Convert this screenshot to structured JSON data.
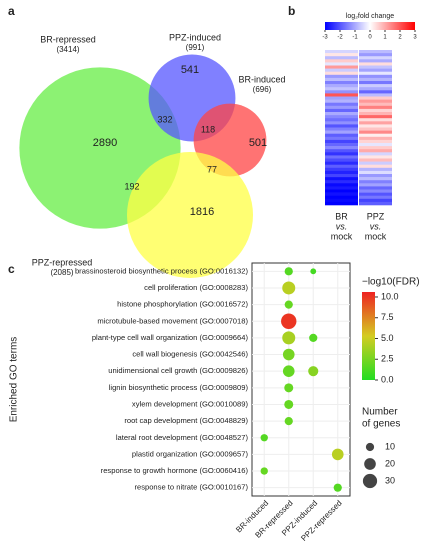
{
  "chart_data": [
    {
      "type": "venn",
      "panel": "a",
      "sets": [
        {
          "name": "BR-repressed",
          "count": 3414,
          "count_label": "(3414)",
          "color": "#66ee44"
        },
        {
          "name": "PPZ-induced",
          "count": 991,
          "count_label": "(991)",
          "color": "#5555ff"
        },
        {
          "name": "BR-induced",
          "count": 696,
          "count_label": "(696)",
          "color": "#ff4444"
        },
        {
          "name": "PPZ-repressed",
          "count": 2085,
          "count_label": "(2085)",
          "color": "#ffff44"
        }
      ],
      "regions": [
        2890,
        541,
        501,
        1816,
        332,
        118,
        192,
        77
      ]
    },
    {
      "type": "heatmap",
      "panel": "b",
      "colorbar_title": "log₂fold change",
      "zlim": [
        -3,
        3
      ],
      "zticks": [
        -3,
        -2,
        -1,
        0,
        1,
        2,
        3
      ],
      "colors": [
        "#0000ff",
        "#ffffff",
        "#ff0000"
      ],
      "columns": [
        {
          "label": [
            "BR",
            "vs.",
            "mock"
          ],
          "values": [
            -0.5,
            0.3,
            -0.8,
            0.6,
            -0.3,
            1.2,
            -0.6,
            0.4,
            -1.2,
            -0.8,
            -1.5,
            -1.0,
            -0.7,
            -1.3,
            2.0,
            -1.1,
            -0.9,
            -1.6,
            -1.2,
            -1.8,
            -1.0,
            -1.4,
            -1.7,
            -1.3,
            -2.0,
            -1.5,
            -1.1,
            -1.9,
            -1.6,
            -2.2,
            -1.8,
            -1.4,
            -2.0,
            -2.4,
            -1.7,
            -2.1,
            -2.5,
            -1.9,
            -2.3,
            -2.6,
            -2.2,
            -2.8,
            -2.5,
            -2.9,
            -2.7,
            -3.0,
            -2.8,
            -3.0,
            -2.9,
            -3.0
          ]
        },
        {
          "label": [
            "PPZ",
            "vs.",
            "mock"
          ],
          "values": [
            -0.8,
            -1.2,
            -0.5,
            -1.0,
            0.4,
            -0.7,
            -1.1,
            -0.3,
            -1.3,
            -0.9,
            -1.6,
            -0.6,
            -1.0,
            -1.8,
            -0.8,
            0.6,
            1.2,
            0.8,
            1.5,
            0.5,
            0.9,
            1.8,
            0.4,
            1.1,
            0.3,
            0.7,
            1.4,
            0.2,
            0.9,
            0.5,
            -0.3,
            0.6,
            1.0,
            -0.5,
            0.3,
            0.8,
            -0.6,
            0.4,
            -0.9,
            -0.4,
            -1.2,
            -0.8,
            -1.5,
            -1.1,
            -1.8,
            -1.4,
            -2.0,
            -1.6,
            -2.2,
            -1.9
          ]
        }
      ]
    },
    {
      "type": "dotplot",
      "panel": "c",
      "ylabel": "Enriched GO terms",
      "terms": [
        "brassinosteroid biosynthetic process (GO:0016132)",
        "cell proliferation (GO:0008283)",
        "histone phosphorylation (GO:0016572)",
        "microtubule-based movement (GO:0007018)",
        "plant-type cell wall organization (GO:0009664)",
        "cell wall biogenesis (GO:0042546)",
        "unidimensional cell growth (GO:0009826)",
        "lignin biosynthetic process (GO:0009809)",
        "xylem development (GO:0010089)",
        "root cap development (GO:0048829)",
        "lateral root development (GO:0048527)",
        "plastid organization (GO:0009657)",
        "response to growth hormone (GO:0060416)",
        "response to nitrate (GO:0010167)"
      ],
      "series": [
        {
          "name": "BR-induced",
          "fdr": [
            null,
            null,
            null,
            null,
            null,
            null,
            null,
            null,
            null,
            null,
            1.5,
            null,
            2,
            null
          ],
          "genes": [
            null,
            null,
            null,
            null,
            null,
            null,
            null,
            null,
            null,
            null,
            8,
            null,
            8,
            null
          ]
        },
        {
          "name": "BR-repressed",
          "fdr": [
            1.5,
            4.5,
            2,
            10,
            4,
            2.5,
            2,
            2,
            2,
            2,
            null,
            null,
            null,
            null
          ],
          "genes": [
            10,
            25,
            10,
            35,
            25,
            20,
            20,
            12,
            12,
            10,
            null,
            null,
            null,
            null
          ]
        },
        {
          "name": "PPZ-induced",
          "fdr": [
            1,
            null,
            null,
            null,
            1.5,
            null,
            3,
            null,
            null,
            null,
            null,
            null,
            null,
            null
          ],
          "genes": [
            5,
            null,
            null,
            null,
            10,
            null,
            15,
            null,
            null,
            null,
            null,
            null,
            null,
            null
          ]
        },
        {
          "name": "PPZ-repressed",
          "fdr": [
            null,
            null,
            null,
            null,
            null,
            null,
            null,
            null,
            null,
            null,
            null,
            4.5,
            null,
            1.5
          ],
          "genes": [
            null,
            null,
            null,
            null,
            null,
            null,
            null,
            null,
            null,
            null,
            null,
            20,
            null,
            10
          ]
        }
      ],
      "color_title": "−log10(FDR)",
      "colors": [
        "#22dd22",
        "#d4cc22",
        "#ee2222"
      ],
      "clim": [
        0,
        10.6
      ],
      "cticks": [
        {
          "value": 0,
          "label": "0.0"
        },
        {
          "value": 2.5,
          "label": "2.5"
        },
        {
          "value": 5,
          "label": "5.0"
        },
        {
          "value": 7.5,
          "label": "7.5"
        },
        {
          "value": 10,
          "label": "10.0"
        }
      ],
      "size_title": [
        "Number",
        "of genes"
      ],
      "size_ticks": [
        10,
        20,
        30
      ]
    }
  ]
}
